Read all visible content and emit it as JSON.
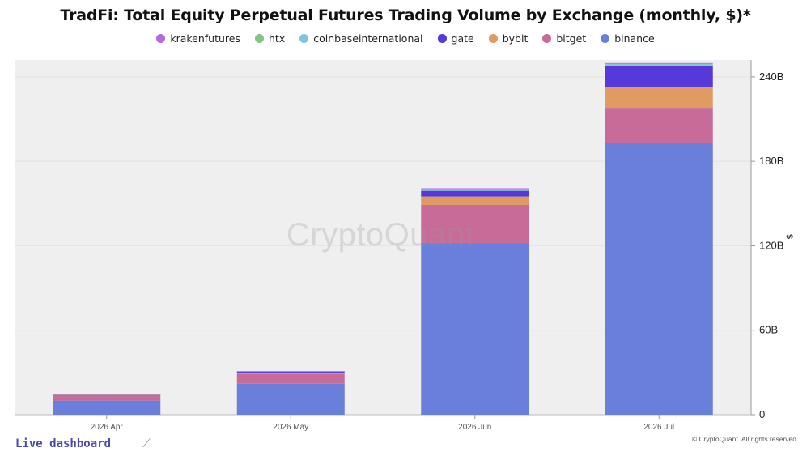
{
  "chart_data": {
    "type": "bar",
    "stacked": true,
    "title": "TradFi: Total Equity Perpetual Futures Trading Volume by Exchange (monthly, $)*",
    "categories": [
      "2026 Apr",
      "2026 May",
      "2026 Jun",
      "2026 Jul"
    ],
    "series": [
      {
        "name": "binance",
        "color": "#6a7fdb",
        "values": [
          10,
          22,
          122,
          193
        ]
      },
      {
        "name": "bitget",
        "color": "#c96b98",
        "values": [
          4,
          7,
          27,
          25
        ]
      },
      {
        "name": "bybit",
        "color": "#e09b63",
        "values": [
          0.3,
          0.8,
          6,
          15
        ]
      },
      {
        "name": "gate",
        "color": "#5738d8",
        "values": [
          0.2,
          0.8,
          4,
          15
        ]
      },
      {
        "name": "coinbaseinternational",
        "color": "#7fc6db",
        "values": [
          0.1,
          0.2,
          1,
          1
        ]
      },
      {
        "name": "htx",
        "color": "#82c483",
        "values": [
          0,
          0.1,
          0.3,
          0.3
        ]
      },
      {
        "name": "krakenfutures",
        "color": "#b26ae0",
        "values": [
          0.1,
          0.1,
          0.5,
          0.5
        ]
      }
    ],
    "legend_order": [
      "krakenfutures",
      "htx",
      "coinbaseinternational",
      "gate",
      "bybit",
      "bitget",
      "binance"
    ],
    "y_ticks": [
      0,
      60,
      120,
      180,
      240
    ],
    "y_tick_labels": [
      "0",
      "60B",
      "120B",
      "180B",
      "240B"
    ],
    "ylim": [
      0,
      252
    ],
    "ylabel": "$",
    "xlabel": "",
    "grid": true,
    "legend_position": "top-center",
    "y_axis_position": "right"
  },
  "watermark": "CryptoQuant",
  "copyright": "© CryptoQuant. All rights reserved",
  "link": {
    "label": "Live dashboard",
    "icon": "arrow-up-right-icon"
  },
  "colors": {
    "plot_background": "#efefef",
    "link": "#4a4ab0"
  }
}
